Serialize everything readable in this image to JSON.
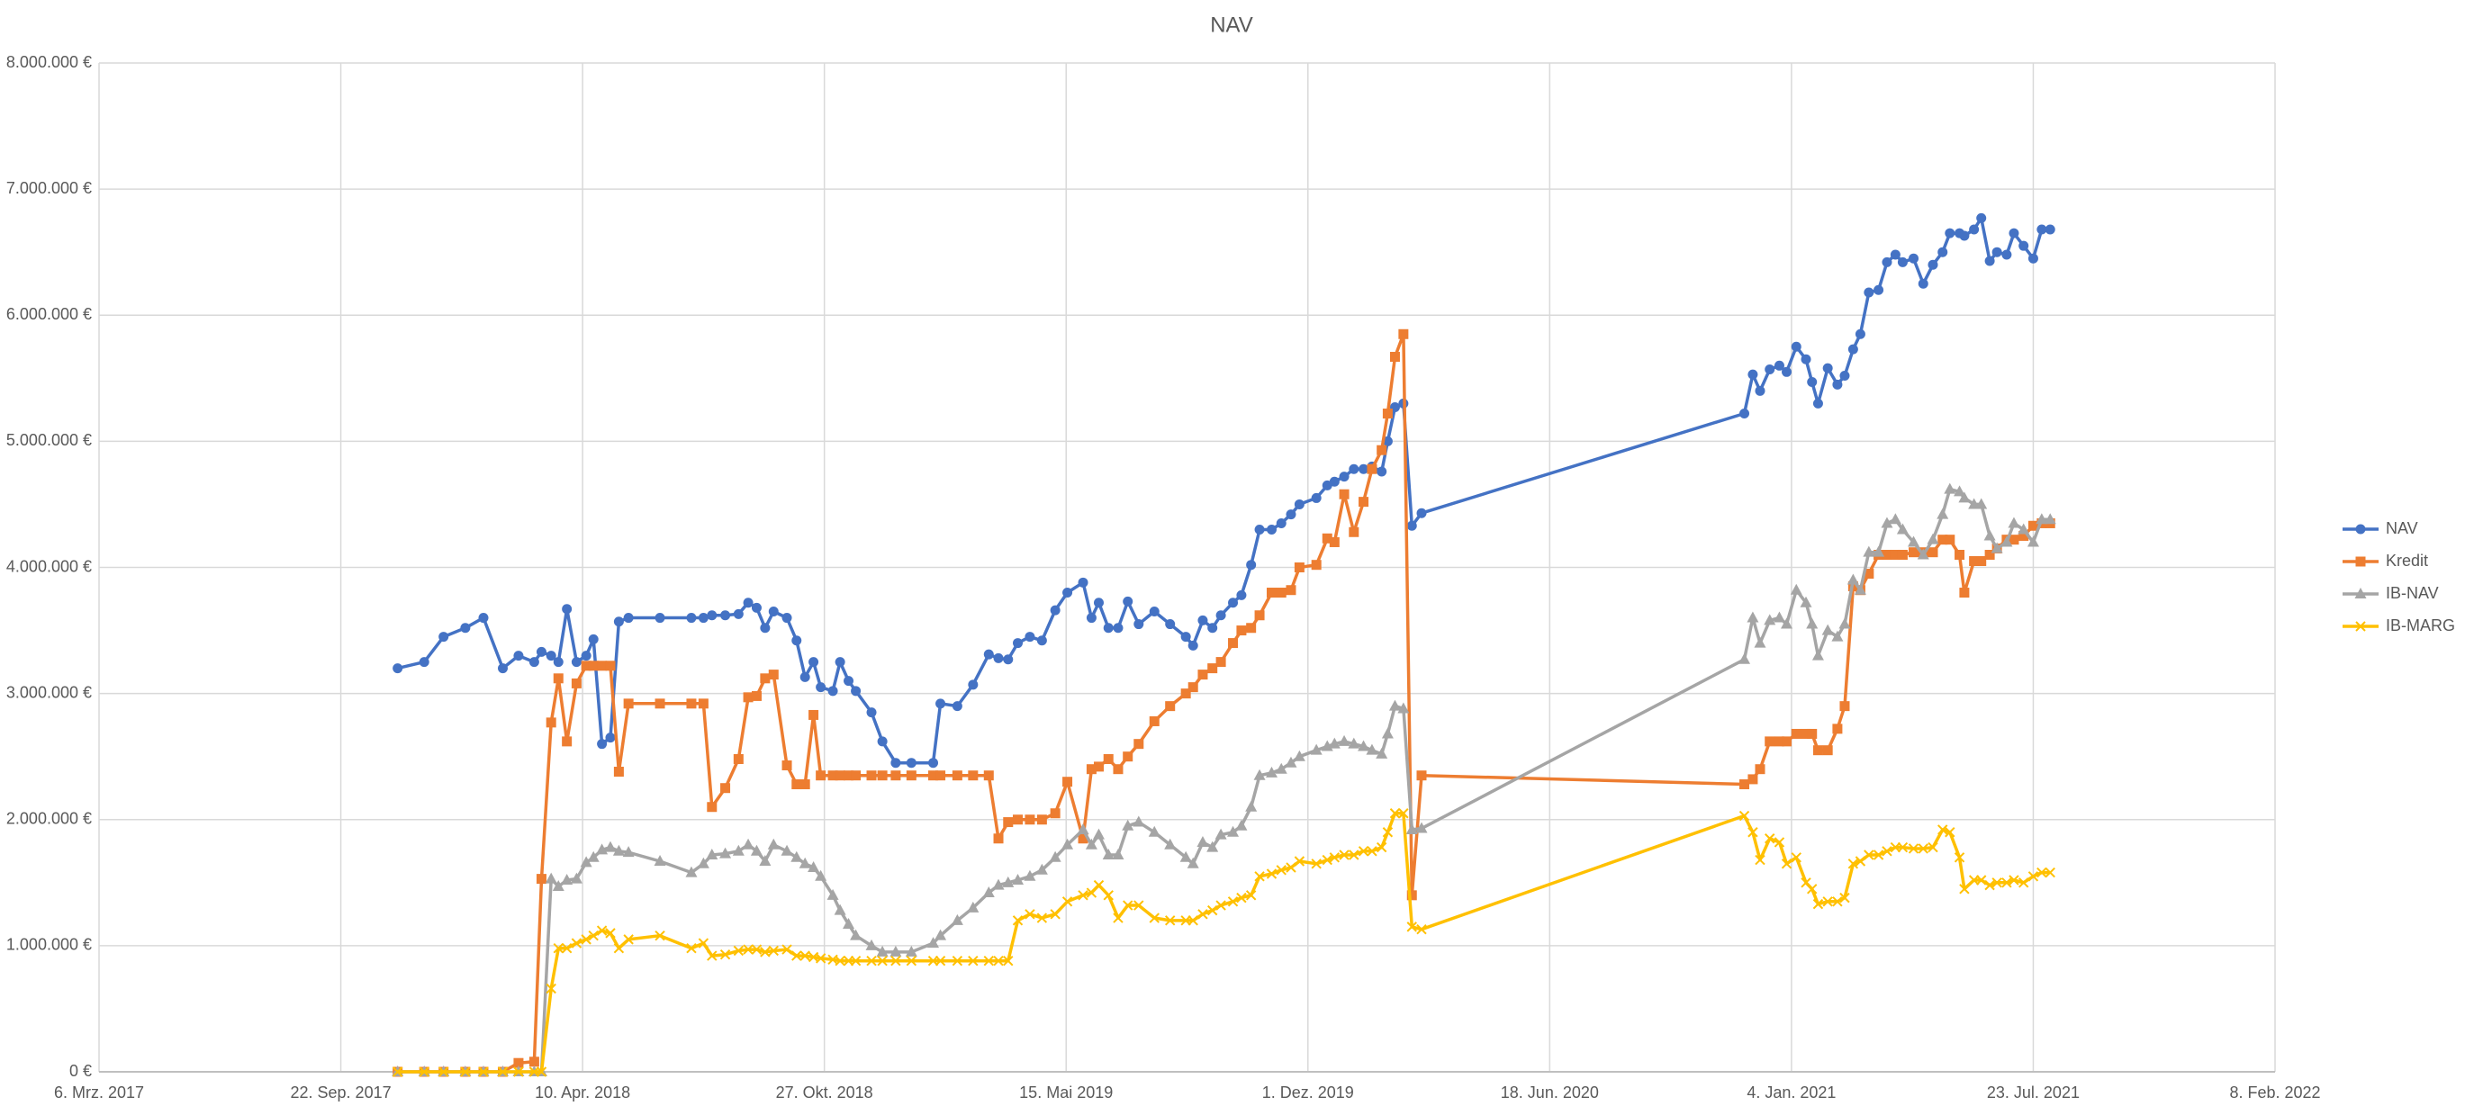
{
  "chart_data": {
    "type": "line",
    "title": "NAV",
    "x": [
      "2017-11-08",
      "2017-11-30",
      "2017-12-16",
      "2018-01-03",
      "2018-01-18",
      "2018-02-03",
      "2018-02-16",
      "2018-03-01",
      "2018-03-07",
      "2018-03-15",
      "2018-03-21",
      "2018-03-28",
      "2018-04-05",
      "2018-04-13",
      "2018-04-19",
      "2018-04-26",
      "2018-05-03",
      "2018-05-10",
      "2018-05-18",
      "2018-06-13",
      "2018-07-09",
      "2018-07-19",
      "2018-07-26",
      "2018-08-06",
      "2018-08-17",
      "2018-08-25",
      "2018-09-01",
      "2018-09-08",
      "2018-09-15",
      "2018-09-26",
      "2018-10-04",
      "2018-10-11",
      "2018-10-18",
      "2018-10-24",
      "2018-11-03",
      "2018-11-09",
      "2018-11-16",
      "2018-11-22",
      "2018-12-05",
      "2018-12-14",
      "2018-12-25",
      "2019-01-07",
      "2019-01-25",
      "2019-01-31",
      "2019-02-14",
      "2019-02-27",
      "2019-03-12",
      "2019-03-20",
      "2019-03-28",
      "2019-04-05",
      "2019-04-15",
      "2019-04-25",
      "2019-05-06",
      "2019-05-16",
      "2019-05-29",
      "2019-06-05",
      "2019-06-11",
      "2019-06-19",
      "2019-06-27",
      "2019-07-05",
      "2019-07-14",
      "2019-07-27",
      "2019-08-09",
      "2019-08-22",
      "2019-08-28",
      "2019-09-05",
      "2019-09-13",
      "2019-09-20",
      "2019-09-30",
      "2019-10-07",
      "2019-10-15",
      "2019-10-22",
      "2019-11-01",
      "2019-11-09",
      "2019-11-17",
      "2019-11-24",
      "2019-12-08",
      "2019-12-17",
      "2019-12-23",
      "2019-12-31",
      "2020-01-08",
      "2020-01-16",
      "2020-01-23",
      "2020-01-31",
      "2020-02-05",
      "2020-02-11",
      "2020-02-18",
      "2020-02-25",
      "2020-03-04",
      "2020-11-26",
      "2020-12-03",
      "2020-12-09",
      "2020-12-17",
      "2020-12-25",
      "2020-12-31",
      "2021-01-08",
      "2021-01-16",
      "2021-01-21",
      "2021-01-26",
      "2021-02-03",
      "2021-02-11",
      "2021-02-17",
      "2021-02-24",
      "2021-03-02",
      "2021-03-09",
      "2021-03-17",
      "2021-03-24",
      "2021-03-31",
      "2021-04-06",
      "2021-04-15",
      "2021-04-23",
      "2021-05-01",
      "2021-05-09",
      "2021-05-15",
      "2021-05-23",
      "2021-05-27",
      "2021-06-04",
      "2021-06-10",
      "2021-06-17",
      "2021-06-23",
      "2021-07-01",
      "2021-07-07",
      "2021-07-15",
      "2021-07-23",
      "2021-07-30",
      "2021-08-06"
    ],
    "series": [
      {
        "name": "NAV",
        "color": "#4472c4",
        "marker": "circle",
        "values": [
          3200000,
          3250000,
          3450000,
          3520000,
          3600000,
          3200000,
          3300000,
          3250000,
          3330000,
          3300000,
          3250000,
          3670000,
          3250000,
          3300000,
          3430000,
          2600000,
          2650000,
          3570000,
          3600000,
          3600000,
          3600000,
          3600000,
          3620000,
          3620000,
          3630000,
          3720000,
          3680000,
          3520000,
          3650000,
          3600000,
          3420000,
          3130000,
          3250000,
          3050000,
          3020000,
          3250000,
          3100000,
          3020000,
          2850000,
          2620000,
          2450000,
          2450000,
          2450000,
          2920000,
          2900000,
          3070000,
          3310000,
          3280000,
          3270000,
          3400000,
          3450000,
          3420000,
          3660000,
          3800000,
          3880000,
          3600000,
          3720000,
          3520000,
          3520000,
          3730000,
          3550000,
          3650000,
          3550000,
          3450000,
          3380000,
          3580000,
          3520000,
          3620000,
          3720000,
          3780000,
          4020000,
          4300000,
          4300000,
          4350000,
          4420000,
          4500000,
          4550000,
          4650000,
          4680000,
          4720000,
          4780000,
          4780000,
          4800000,
          4760000,
          5000000,
          5270000,
          5300000,
          4330000,
          4430000,
          5220000,
          5530000,
          5400000,
          5570000,
          5600000,
          5550000,
          5750000,
          5650000,
          5470000,
          5300000,
          5580000,
          5450000,
          5520000,
          5730000,
          5850000,
          6180000,
          6200000,
          6420000,
          6480000,
          6420000,
          6450000,
          6250000,
          6400000,
          6500000,
          6650000,
          6650000,
          6630000,
          6680000,
          6770000,
          6430000,
          6500000,
          6480000,
          6650000,
          6550000,
          6450000,
          6680000,
          6680000
        ]
      },
      {
        "name": "Kredit",
        "color": "#ed7d31",
        "marker": "square",
        "values": [
          0,
          0,
          0,
          0,
          0,
          0,
          70000,
          80000,
          1530000,
          2770000,
          3120000,
          2620000,
          3080000,
          3220000,
          3220000,
          3220000,
          3220000,
          2380000,
          2920000,
          2920000,
          2920000,
          2920000,
          2100000,
          2250000,
          2480000,
          2970000,
          2980000,
          3120000,
          3150000,
          2430000,
          2280000,
          2280000,
          2830000,
          2350000,
          2350000,
          2350000,
          2350000,
          2350000,
          2350000,
          2350000,
          2350000,
          2350000,
          2350000,
          2350000,
          2350000,
          2350000,
          2350000,
          1850000,
          1980000,
          2000000,
          2000000,
          2000000,
          2050000,
          2300000,
          1850000,
          2400000,
          2420000,
          2480000,
          2400000,
          2500000,
          2600000,
          2780000,
          2900000,
          3000000,
          3050000,
          3150000,
          3200000,
          3250000,
          3400000,
          3500000,
          3520000,
          3620000,
          3800000,
          3800000,
          3820000,
          4000000,
          4020000,
          4230000,
          4200000,
          4580000,
          4280000,
          4520000,
          4780000,
          4930000,
          5220000,
          5670000,
          5850000,
          1400000,
          2350000,
          2280000,
          2320000,
          2400000,
          2620000,
          2620000,
          2620000,
          2680000,
          2680000,
          2680000,
          2550000,
          2550000,
          2720000,
          2900000,
          3850000,
          3820000,
          3950000,
          4100000,
          4100000,
          4100000,
          4100000,
          4120000,
          4120000,
          4120000,
          4220000,
          4220000,
          4100000,
          3800000,
          4050000,
          4050000,
          4100000,
          4150000,
          4220000,
          4220000,
          4250000,
          4330000,
          4350000,
          4350000
        ]
      },
      {
        "name": "IB-NAV",
        "color": "#a5a5a5",
        "marker": "triangle",
        "values": [
          0,
          0,
          0,
          0,
          0,
          0,
          0,
          0,
          0,
          1530000,
          1470000,
          1520000,
          1530000,
          1660000,
          1700000,
          1760000,
          1780000,
          1750000,
          1740000,
          1670000,
          1580000,
          1650000,
          1720000,
          1730000,
          1750000,
          1800000,
          1750000,
          1670000,
          1800000,
          1750000,
          1700000,
          1650000,
          1620000,
          1550000,
          1400000,
          1280000,
          1170000,
          1080000,
          1000000,
          950000,
          950000,
          950000,
          1020000,
          1080000,
          1200000,
          1300000,
          1420000,
          1480000,
          1500000,
          1520000,
          1550000,
          1600000,
          1700000,
          1800000,
          1920000,
          1800000,
          1880000,
          1720000,
          1720000,
          1950000,
          1980000,
          1900000,
          1800000,
          1700000,
          1650000,
          1820000,
          1780000,
          1880000,
          1900000,
          1950000,
          2100000,
          2350000,
          2370000,
          2400000,
          2450000,
          2500000,
          2550000,
          2580000,
          2600000,
          2620000,
          2600000,
          2580000,
          2550000,
          2520000,
          2680000,
          2900000,
          2880000,
          1920000,
          1930000,
          3270000,
          3600000,
          3400000,
          3580000,
          3600000,
          3550000,
          3820000,
          3720000,
          3550000,
          3300000,
          3500000,
          3450000,
          3550000,
          3900000,
          3820000,
          4120000,
          4120000,
          4350000,
          4380000,
          4300000,
          4200000,
          4100000,
          4220000,
          4420000,
          4620000,
          4600000,
          4550000,
          4500000,
          4500000,
          4250000,
          4150000,
          4200000,
          4350000,
          4300000,
          4200000,
          4380000,
          4380000
        ]
      },
      {
        "name": "IB-MARG",
        "color": "#ffc000",
        "marker": "cross",
        "values": [
          0,
          0,
          0,
          0,
          0,
          0,
          0,
          0,
          0,
          660000,
          980000,
          980000,
          1020000,
          1050000,
          1080000,
          1120000,
          1100000,
          980000,
          1050000,
          1080000,
          980000,
          1020000,
          920000,
          930000,
          960000,
          970000,
          970000,
          950000,
          960000,
          970000,
          920000,
          920000,
          910000,
          900000,
          890000,
          880000,
          880000,
          880000,
          880000,
          880000,
          880000,
          880000,
          880000,
          880000,
          880000,
          880000,
          880000,
          880000,
          880000,
          1200000,
          1250000,
          1220000,
          1250000,
          1350000,
          1400000,
          1420000,
          1480000,
          1400000,
          1220000,
          1320000,
          1320000,
          1220000,
          1200000,
          1200000,
          1200000,
          1250000,
          1280000,
          1320000,
          1350000,
          1380000,
          1400000,
          1550000,
          1570000,
          1600000,
          1620000,
          1670000,
          1650000,
          1680000,
          1700000,
          1720000,
          1720000,
          1750000,
          1750000,
          1780000,
          1900000,
          2050000,
          2050000,
          1150000,
          1130000,
          2030000,
          1900000,
          1680000,
          1850000,
          1820000,
          1650000,
          1700000,
          1500000,
          1450000,
          1330000,
          1350000,
          1350000,
          1380000,
          1650000,
          1670000,
          1720000,
          1720000,
          1750000,
          1780000,
          1780000,
          1770000,
          1770000,
          1780000,
          1920000,
          1900000,
          1700000,
          1450000,
          1520000,
          1520000,
          1480000,
          1500000,
          1500000,
          1520000,
          1500000,
          1550000,
          1580000,
          1580000
        ]
      }
    ],
    "xlim": [
      "2017-03-06",
      "2022-02-08"
    ],
    "xticks": [
      {
        "value": "2017-03-06",
        "label": "6. Mrz. 2017"
      },
      {
        "value": "2017-09-22",
        "label": "22. Sep. 2017"
      },
      {
        "value": "2018-04-10",
        "label": "10. Apr. 2018"
      },
      {
        "value": "2018-10-27",
        "label": "27. Okt. 2018"
      },
      {
        "value": "2019-05-15",
        "label": "15. Mai 2019"
      },
      {
        "value": "2019-12-01",
        "label": "1. Dez. 2019"
      },
      {
        "value": "2020-06-18",
        "label": "18. Jun. 2020"
      },
      {
        "value": "2021-01-04",
        "label": "4. Jan. 2021"
      },
      {
        "value": "2021-07-23",
        "label": "23. Jul. 2021"
      },
      {
        "value": "2022-02-08",
        "label": "8. Feb. 2022"
      }
    ],
    "ylim": [
      0,
      8000000
    ],
    "yticks": [
      {
        "value": 0,
        "label": "0 €"
      },
      {
        "value": 1000000,
        "label": "1.000.000 €"
      },
      {
        "value": 2000000,
        "label": "2.000.000 €"
      },
      {
        "value": 3000000,
        "label": "3.000.000 €"
      },
      {
        "value": 4000000,
        "label": "4.000.000 €"
      },
      {
        "value": 5000000,
        "label": "5.000.000 €"
      },
      {
        "value": 6000000,
        "label": "6.000.000 €"
      },
      {
        "value": 7000000,
        "label": "7.000.000 €"
      },
      {
        "value": 8000000,
        "label": "8.000.000 €"
      }
    ],
    "grid": true,
    "legend": "right"
  }
}
